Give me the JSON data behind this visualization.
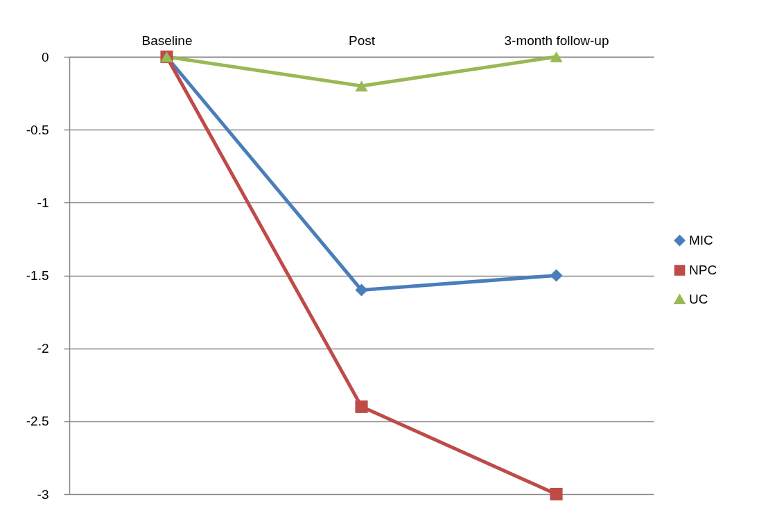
{
  "chart_data": {
    "type": "line",
    "categories": [
      "Baseline",
      "Post",
      "3-month follow-up"
    ],
    "series": [
      {
        "name": "MIC",
        "color": "#4a7ebb",
        "marker": "diamond",
        "values": [
          0,
          -1.6,
          -1.5
        ]
      },
      {
        "name": "NPC",
        "color": "#be4b48",
        "marker": "square",
        "values": [
          0,
          -2.4,
          -3
        ]
      },
      {
        "name": "UC",
        "color": "#98b954",
        "marker": "triangle",
        "values": [
          0,
          -0.2,
          0
        ]
      }
    ],
    "ylim": [
      -3,
      0
    ],
    "yticks": [
      0,
      -0.5,
      -1,
      -1.5,
      -2,
      -2.5,
      -3
    ],
    "grid": "y",
    "legend": "right"
  }
}
